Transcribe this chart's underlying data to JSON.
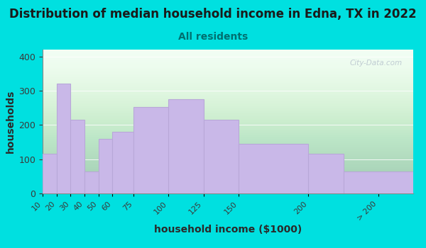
{
  "title": "Distribution of median household income in Edna, TX in 2022",
  "subtitle": "All residents",
  "xlabel": "household income ($1000)",
  "ylabel": "households",
  "bin_edges": [
    10,
    20,
    30,
    40,
    50,
    60,
    75,
    100,
    125,
    150,
    200,
    225,
    275
  ],
  "tick_positions": [
    10,
    20,
    30,
    40,
    50,
    60,
    75,
    100,
    125,
    150,
    200,
    250
  ],
  "tick_labels": [
    "10",
    "20",
    "30",
    "40",
    "50",
    "60",
    "75",
    "100",
    "125",
    "150",
    "200",
    "> 200"
  ],
  "values": [
    115,
    320,
    215,
    65,
    160,
    180,
    252,
    275,
    215,
    145,
    115,
    65
  ],
  "bar_color": "#c9b8e8",
  "bar_edgecolor": "#b8a8d8",
  "outer_bg": "#00e0e0",
  "plot_bg_color": "#f0fff4",
  "title_color": "#1a1a1a",
  "subtitle_color": "#007070",
  "axis_label_color": "#2a2a2a",
  "tick_label_color": "#3a3a3a",
  "ylim": [
    0,
    420
  ],
  "yticks": [
    0,
    100,
    200,
    300,
    400
  ],
  "watermark": "City-Data.com",
  "title_fontsize": 12,
  "subtitle_fontsize": 10,
  "label_fontsize": 10
}
